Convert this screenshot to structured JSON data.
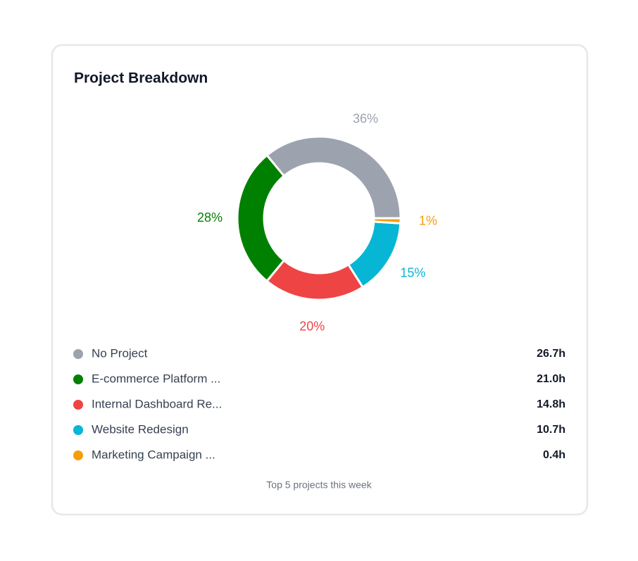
{
  "chart_data": {
    "type": "doughnut",
    "title": "Project Breakdown",
    "categories": [
      "No Project",
      "E-commerce Platform ...",
      "Internal Dashboard Re...",
      "Website Redesign",
      "Marketing Campaign ..."
    ],
    "values": [
      36,
      28,
      20,
      15,
      1
    ],
    "value_labels": [
      "36%",
      "28%",
      "20%",
      "15%",
      "1%"
    ],
    "colors": [
      "#9ca3af",
      "#008000",
      "#ef4444",
      "#06b6d4",
      "#f59e0b"
    ],
    "hours": [
      "26.7h",
      "21.0h",
      "14.8h",
      "10.7h",
      "0.4h"
    ],
    "footnote": "Top 5 projects this week"
  }
}
